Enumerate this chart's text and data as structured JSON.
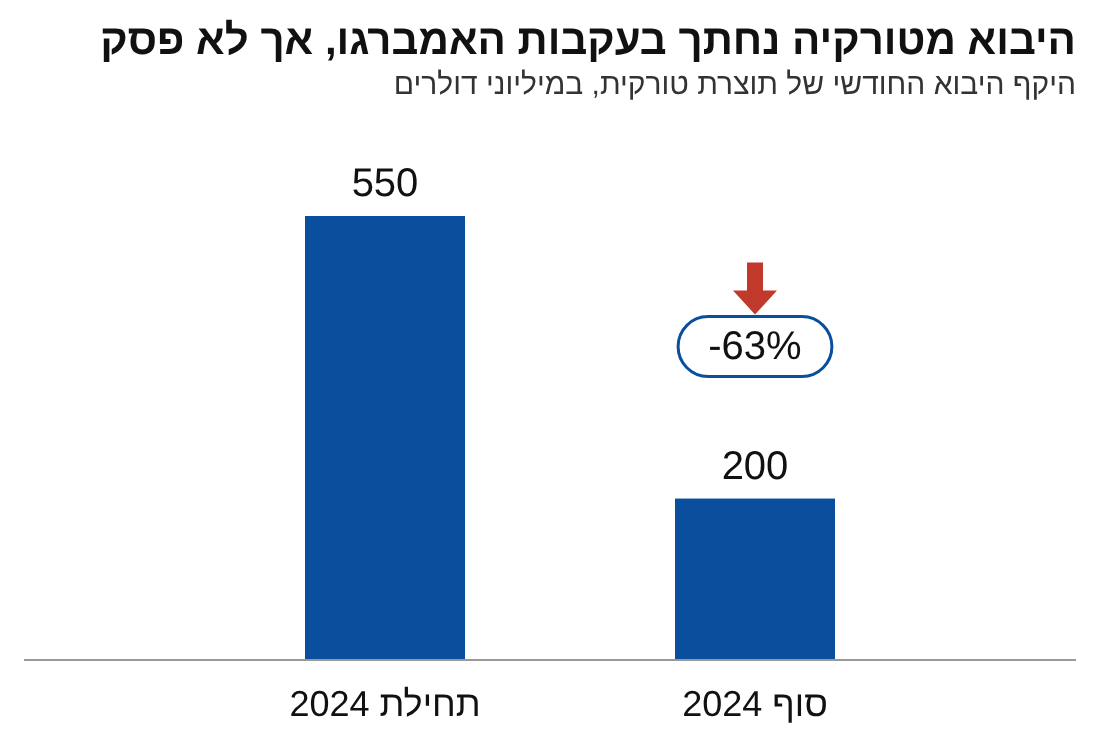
{
  "chart_data": {
    "type": "bar",
    "title": "היבוא מטורקיה נחתך בעקבות האמברגו, אך לא פסק",
    "subtitle": "היקף היבוא החודשי של תוצרת טורקית, במיליוני דולרים",
    "categories": [
      "תחילת 2024",
      "סוף 2024"
    ],
    "series": [
      {
        "color": "#0a4f9e",
        "values": [
          550,
          200
        ]
      }
    ],
    "data_labels": true,
    "annotations": [
      "-63%"
    ]
  }
}
